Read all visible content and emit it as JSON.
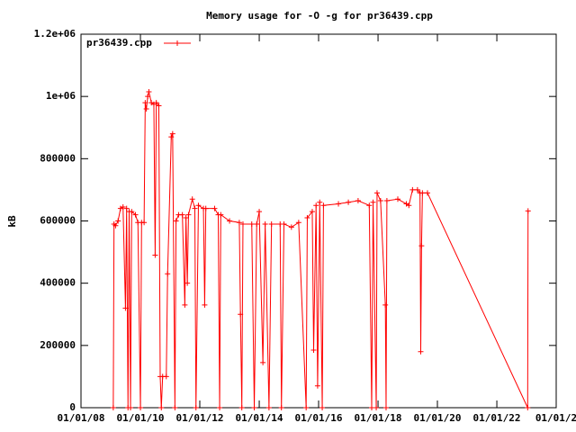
{
  "chart_data": {
    "type": "line",
    "title": "Memory usage for -O -g for pr36439.cpp",
    "y_label": "kB",
    "legend": "top-left",
    "grid": false,
    "xlim": [
      "2008-01-01",
      "2024-01-01"
    ],
    "xticks": [
      {
        "value": "2008-01-01",
        "label": "01/01/08"
      },
      {
        "value": "2010-01-01",
        "label": "01/01/10"
      },
      {
        "value": "2012-01-01",
        "label": "01/01/12"
      },
      {
        "value": "2014-01-01",
        "label": "01/01/14"
      },
      {
        "value": "2016-01-01",
        "label": "01/01/16"
      },
      {
        "value": "2018-01-01",
        "label": "01/01/18"
      },
      {
        "value": "2020-01-01",
        "label": "01/01/20"
      },
      {
        "value": "2022-01-01",
        "label": "01/01/22"
      },
      {
        "value": "2024-01-01",
        "label": "01/01/2"
      }
    ],
    "ylim": [
      0,
      1200000
    ],
    "yticks": [
      0,
      200000,
      400000,
      600000,
      800000,
      {
        "value": 1000000,
        "label": "1e+06"
      },
      {
        "value": 1200000,
        "label": "1.2e+06"
      }
    ],
    "x": [
      "2009-02-01",
      "2009-02-10",
      "2009-03-01",
      "2009-04-01",
      "2009-05-01",
      "2009-06-01",
      "2009-07-01",
      "2009-07-15",
      "2009-08-01",
      "2009-08-15",
      "2009-09-01",
      "2009-09-15",
      "2009-11-01",
      "2009-12-01",
      "2010-01-01",
      "2010-01-15",
      "2010-02-15",
      "2010-03-01",
      "2010-03-15",
      "2010-04-01",
      "2010-04-15",
      "2010-05-15",
      "2010-06-15",
      "2010-07-01",
      "2010-07-15",
      "2010-08-15",
      "2010-09-01",
      "2010-09-15",
      "2010-10-01",
      "2010-11-15",
      "2010-12-01",
      "2011-01-15",
      "2011-02-01",
      "2011-03-01",
      "2011-03-15",
      "2011-04-15",
      "2011-06-01",
      "2011-07-01",
      "2011-07-15",
      "2011-08-01",
      "2011-08-15",
      "2011-10-01",
      "2011-11-01",
      "2011-11-15",
      "2011-12-15",
      "2012-02-15",
      "2012-03-01",
      "2012-03-15",
      "2012-07-01",
      "2012-08-15",
      "2012-09-01",
      "2012-09-15",
      "2013-01-01",
      "2013-05-01",
      "2013-05-15",
      "2013-06-01",
      "2013-06-15",
      "2013-10-01",
      "2013-11-01",
      "2013-12-01",
      "2014-01-01",
      "2014-02-15",
      "2014-03-15",
      "2014-05-01",
      "2014-06-01",
      "2014-09-15",
      "2014-10-01",
      "2014-11-01",
      "2015-02-01",
      "2015-05-01",
      "2015-08-01",
      "2015-08-15",
      "2015-10-15",
      "2015-11-01",
      "2015-12-01",
      "2015-12-20",
      "2016-01-15",
      "2016-02-15",
      "2016-03-01",
      "2016-09-01",
      "2017-01-01",
      "2017-05-01",
      "2017-09-15",
      "2017-10-15",
      "2017-11-01",
      "2017-12-10",
      "2017-12-20",
      "2018-02-01",
      "2018-04-01",
      "2018-04-10",
      "2018-04-20",
      "2018-09-01",
      "2018-12-15",
      "2019-01-15",
      "2019-03-01",
      "2019-05-01",
      "2019-06-01",
      "2019-06-10",
      "2019-06-20",
      "2019-07-01",
      "2019-09-01",
      "2023-01-15",
      "2023-01-20"
    ],
    "series": [
      {
        "name": "pr36439.cpp",
        "color": "#ff0000",
        "values": [
          0,
          590000,
          585000,
          600000,
          640000,
          645000,
          320000,
          640000,
          0,
          630000,
          0,
          630000,
          620000,
          595000,
          0,
          595000,
          595000,
          980000,
          960000,
          1000000,
          1015000,
          980000,
          975000,
          490000,
          980000,
          970000,
          100000,
          0,
          100000,
          100000,
          430000,
          870000,
          880000,
          0,
          600000,
          620000,
          620000,
          330000,
          610000,
          400000,
          620000,
          670000,
          640000,
          0,
          650000,
          640000,
          330000,
          640000,
          640000,
          620000,
          0,
          620000,
          600000,
          595000,
          300000,
          0,
          590000,
          590000,
          0,
          590000,
          630000,
          145000,
          590000,
          0,
          590000,
          590000,
          0,
          590000,
          580000,
          595000,
          0,
          610000,
          630000,
          185000,
          650000,
          70000,
          660000,
          0,
          650000,
          655000,
          660000,
          665000,
          650000,
          0,
          660000,
          0,
          690000,
          665000,
          330000,
          0,
          665000,
          670000,
          655000,
          650000,
          700000,
          700000,
          690000,
          180000,
          520000,
          690000,
          690000,
          0,
          632000
        ]
      }
    ]
  }
}
